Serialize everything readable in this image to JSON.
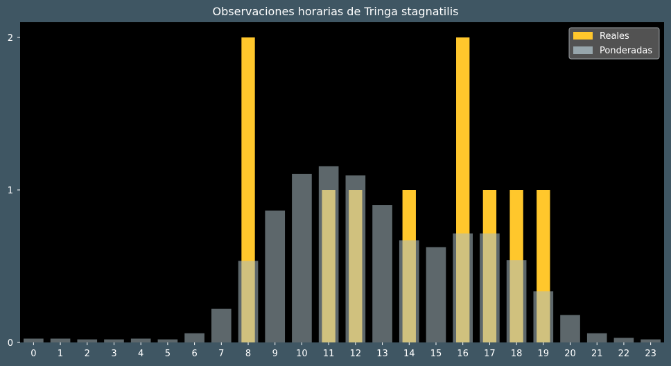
{
  "chart_data": {
    "type": "bar",
    "title": "Observaciones horarias de Tringa stagnatilis",
    "xlabel": "",
    "ylabel": "",
    "categories": [
      "0",
      "1",
      "2",
      "3",
      "4",
      "5",
      "6",
      "7",
      "8",
      "9",
      "10",
      "11",
      "12",
      "13",
      "14",
      "15",
      "16",
      "17",
      "18",
      "19",
      "20",
      "21",
      "22",
      "23"
    ],
    "ylim": [
      0,
      2.1
    ],
    "yticks": [
      0,
      1,
      2
    ],
    "legend_position": "top-right",
    "grid": false,
    "series": [
      {
        "name": "Reales",
        "color": "#ffc72c",
        "values": [
          0,
          0,
          0,
          0,
          0,
          0,
          0,
          0,
          2,
          0,
          0,
          1,
          1,
          0,
          1,
          0,
          2,
          1,
          1,
          1,
          0,
          0,
          0,
          0
        ]
      },
      {
        "name": "Ponderadas",
        "color": "#a9bbc3",
        "opacity": 0.55,
        "values": [
          0.025,
          0.025,
          0.02,
          0.02,
          0.025,
          0.02,
          0.06,
          0.22,
          0.535,
          0.865,
          1.105,
          1.155,
          1.095,
          0.9,
          0.67,
          0.625,
          0.715,
          0.715,
          0.54,
          0.335,
          0.18,
          0.06,
          0.03,
          0.02
        ]
      }
    ]
  },
  "colors": {
    "background": "#3f5663",
    "plot_background": "#000000",
    "axis": "#ffffff",
    "legend_background": "#595959"
  }
}
